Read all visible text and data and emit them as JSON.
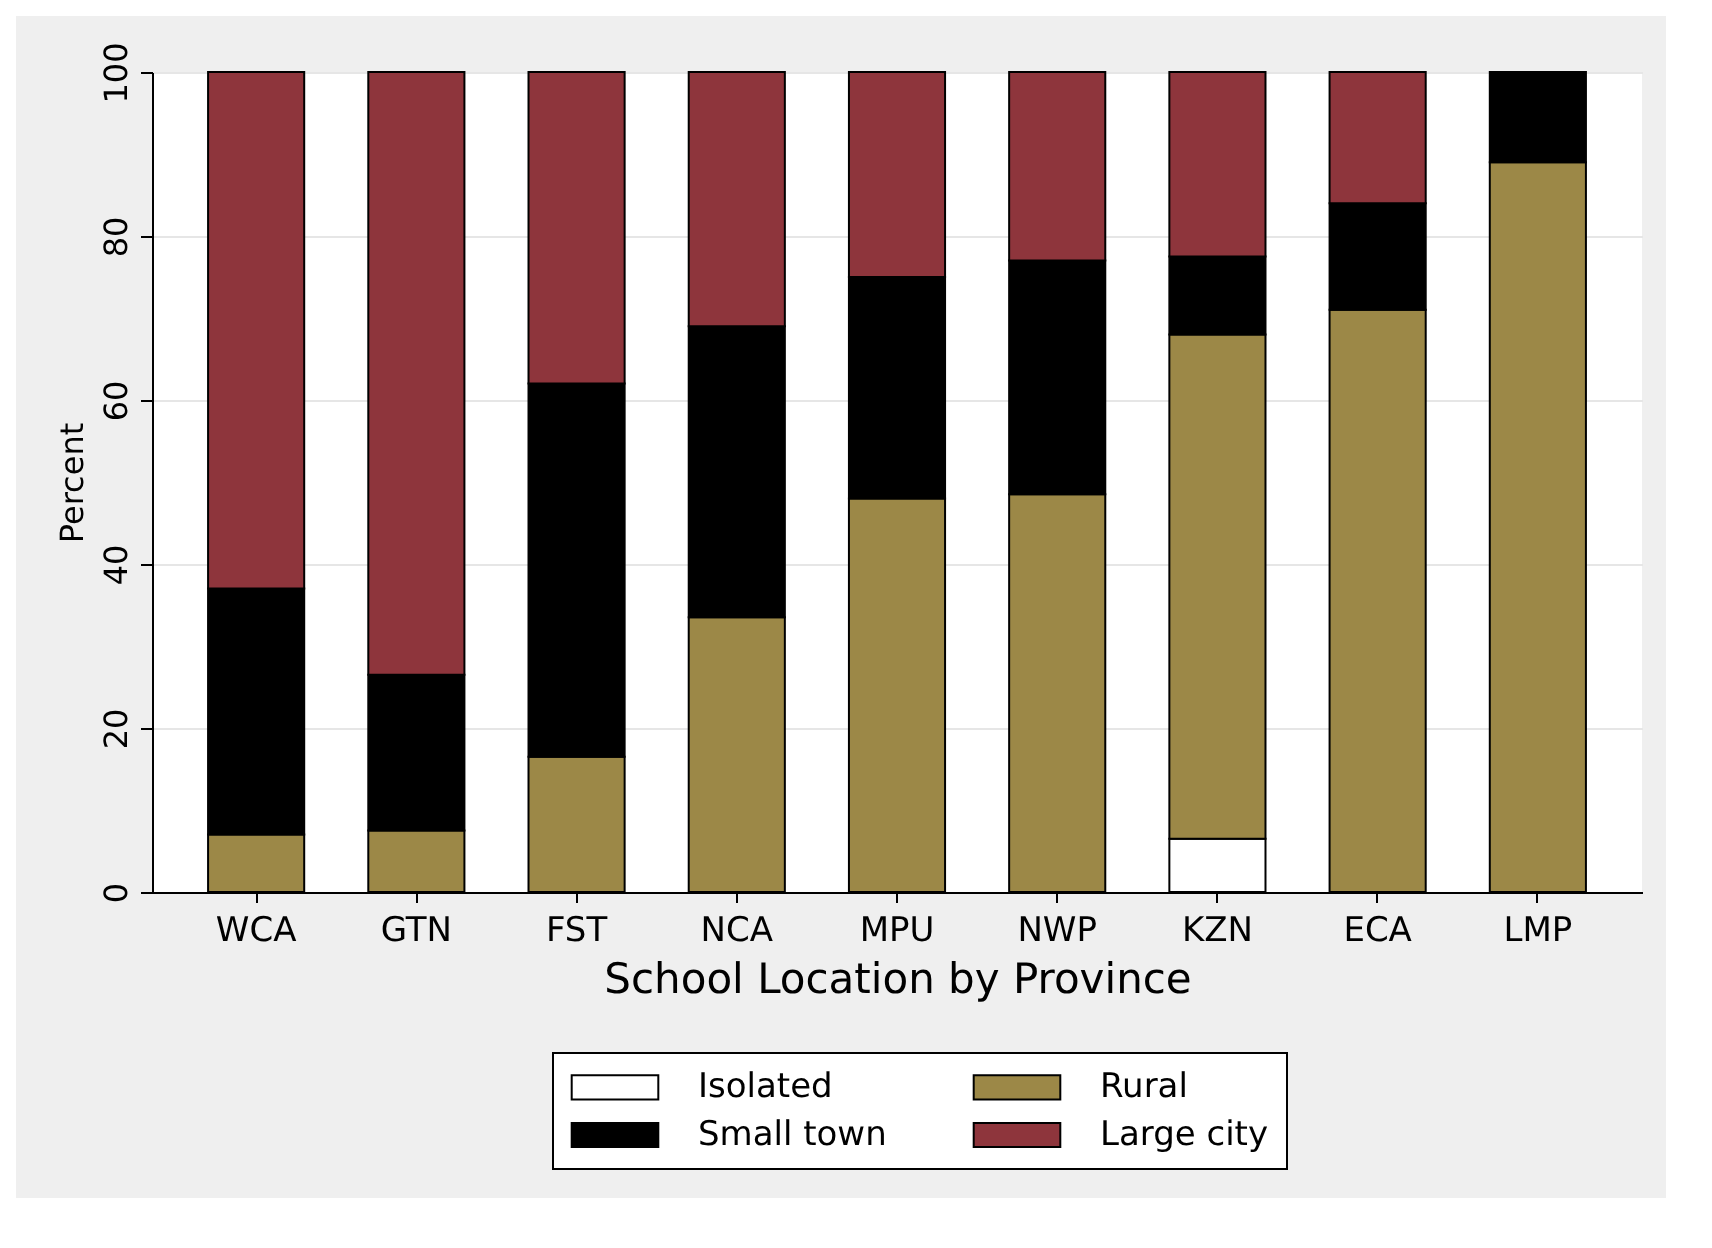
{
  "chart_data": {
    "type": "bar",
    "stacked": true,
    "xlabel": "School Location by Province",
    "ylabel": "Percent",
    "categories": [
      "WCA",
      "GTN",
      "FST",
      "NCA",
      "MPU",
      "NWP",
      "KZN",
      "ECA",
      "LMP"
    ],
    "series": [
      {
        "name": "Isolated",
        "color": "#ffffff",
        "values": [
          null,
          null,
          null,
          null,
          null,
          null,
          6.5,
          null,
          null
        ]
      },
      {
        "name": "Rural",
        "color": "#9c8847",
        "values": [
          7,
          7.5,
          16.5,
          33.5,
          48,
          48.5,
          61.5,
          71,
          89
        ]
      },
      {
        "name": "Small town",
        "color": "#000000",
        "values": [
          30,
          19,
          45.5,
          35.5,
          27,
          28.5,
          9.5,
          13,
          11
        ]
      },
      {
        "name": "Large city",
        "color": "#8e353c",
        "values": [
          63,
          73.5,
          38,
          31,
          25,
          23,
          22.5,
          16,
          null
        ]
      }
    ],
    "ylim": [
      0,
      100
    ],
    "yticks": [
      0,
      20,
      40,
      60,
      80,
      100
    ],
    "grid": "y",
    "legend": "bottom"
  }
}
